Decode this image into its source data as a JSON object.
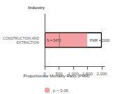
{
  "chart_data": {
    "type": "bar",
    "orientation": "horizontal",
    "xlabel": "Proportionate Mortality Ratio (PMR)",
    "ylabel": "Industry",
    "categories": [
      "CONSTRUCTION AND\nEXTRACTION"
    ],
    "series": [
      {
        "values": [
          2000
        ],
        "color": "#000000"
      },
      {
        "name": "p < 0.05",
        "values": [
          1491
        ],
        "color": "#f4a0a0"
      },
      {
        "type": "scatter",
        "marker": "line",
        "values": [
          517
        ],
        "color": "#666666"
      }
    ],
    "annotations": [
      "N = 5470",
      "PMR = 2000"
    ],
    "xlim": [
      0,
      2100
    ],
    "xticks": [
      0,
      500,
      1000,
      1500,
      2000
    ],
    "grid": false,
    "legend": "bottom"
  }
}
